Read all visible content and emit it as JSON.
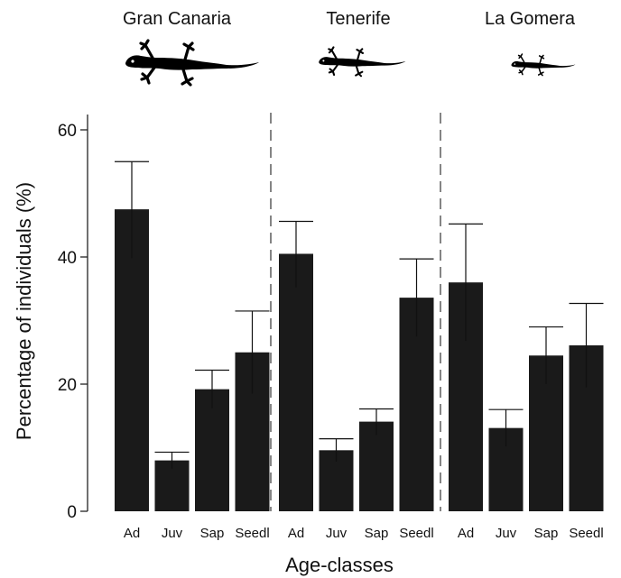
{
  "chart_data": {
    "type": "bar",
    "xlabel": "Age-classes",
    "ylabel": "Percentage of individuals (%)",
    "ylim": [
      0,
      64
    ],
    "yticks": [
      0,
      20,
      40,
      60
    ],
    "grid": false,
    "bar_color": "#1a1a1a",
    "categories": [
      "Ad",
      "Juv",
      "Sap",
      "Seedl"
    ],
    "panels": [
      {
        "name": "Gran Canaria",
        "icon": "lizard-large-icon",
        "values": [
          47.5,
          8,
          19.2,
          25
        ],
        "error_upper": [
          55,
          9.3,
          22.2,
          31.5
        ],
        "error_lower": [
          39.8,
          6.7,
          16.2,
          18.5
        ]
      },
      {
        "name": "Tenerife",
        "icon": "lizard-medium-icon",
        "values": [
          40.5,
          9.6,
          14.1,
          33.6
        ],
        "error_upper": [
          45.6,
          11.4,
          16.1,
          39.7
        ],
        "error_lower": [
          35.2,
          7.8,
          12,
          27.5
        ]
      },
      {
        "name": "La Gomera",
        "icon": "lizard-small-icon",
        "values": [
          36,
          13.1,
          24.5,
          26.1
        ],
        "error_upper": [
          45.2,
          16,
          29,
          32.7
        ],
        "error_lower": [
          26.8,
          10.2,
          20,
          19.5
        ]
      }
    ]
  }
}
